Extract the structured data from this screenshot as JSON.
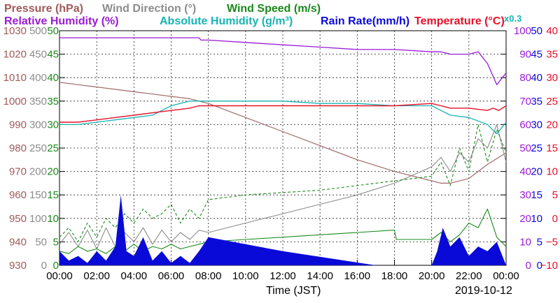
{
  "header": {
    "row1": [
      {
        "text": "Pressure (hPa)",
        "color": "#a05a5a"
      },
      {
        "text": "Wind Direction (°)",
        "color": "#8c8c8c"
      },
      {
        "text": "Wind Speed (m/s)",
        "color": "#1a8a1a"
      }
    ],
    "row2": [
      {
        "text": "Relative Humidity (%)",
        "color": "#9a1ad8"
      },
      {
        "text": "Absolute Humidity (g/m³)",
        "color": "#18b4b4"
      },
      {
        "text": "Rain Rate(mm/h)",
        "color": "#0a0ad8"
      },
      {
        "text": "Temperature (°C)",
        "color": "#e8102a"
      }
    ],
    "multiplier": "x0.3"
  },
  "footer": {
    "xlabel": "Time (JST)",
    "date": "2019-10-12"
  },
  "colors": {
    "pressure": "#a06a6a",
    "wind_direction": "#8c8c8c",
    "wind_speed": "#1a8a1a",
    "relative_humidity": "#9a1ad8",
    "absolute_humidity": "#18b4b4",
    "rain_rate": "#0a0ad8",
    "temperature": "#e8102a"
  },
  "chart_data": {
    "type": "line",
    "x_unit": "hours (00:00 to 24:00 JST)",
    "xlim": [
      0,
      24
    ],
    "x_ticks": [
      "00:00",
      "02:00",
      "04:00",
      "06:00",
      "08:00",
      "10:00",
      "12:00",
      "14:00",
      "16:00",
      "18:00",
      "20:00",
      "22:00",
      "00:00"
    ],
    "grid": true,
    "left_axes": [
      {
        "name": "Pressure (hPa)",
        "color": "#a05a5a",
        "range": [
          930,
          1030
        ],
        "ticks": [
          "1030",
          "1020",
          "1010",
          "1000",
          "990",
          "980",
          "970",
          "960",
          "950",
          "940",
          "930"
        ]
      },
      {
        "name": "Wind Direction (°)",
        "color": "#8c8c8c",
        "range": [
          0,
          500
        ],
        "ticks": [
          "500",
          "450",
          "400",
          "350",
          "300",
          "250",
          "200",
          "150",
          "100",
          "50",
          "0"
        ]
      },
      {
        "name": "Wind Speed (m/s)",
        "color": "#1a8a1a",
        "range": [
          0,
          50
        ],
        "ticks": [
          "50",
          "45",
          "40",
          "35",
          "30",
          "25",
          "20",
          "15",
          "10",
          "5",
          "0"
        ]
      }
    ],
    "right_axes": [
      {
        "name": "Relative Humidity (%)",
        "color": "#9a1ad8",
        "range": [
          0,
          100
        ],
        "ticks": [
          "100",
          "90",
          "80",
          "70",
          "60",
          "50",
          "40",
          "30",
          "20",
          "10",
          "0"
        ]
      },
      {
        "name": "Rain Rate (mm/h)",
        "color": "#0a0ad8",
        "range": [
          0,
          50
        ],
        "ticks": [
          "50",
          "45",
          "40",
          "35",
          "30",
          "25",
          "20",
          "15",
          "10",
          "5",
          "0"
        ]
      },
      {
        "name": "Temperature (°C)",
        "color": "#e8102a",
        "range": [
          -10,
          40
        ],
        "ticks": [
          "40",
          "35",
          "30",
          "25",
          "20",
          "15",
          "10",
          "5",
          "0",
          "−5",
          "−10"
        ]
      }
    ],
    "series": [
      {
        "name": "Pressure",
        "axis": "pressure",
        "x": [
          0,
          1,
          2,
          3,
          4,
          5,
          6,
          7,
          8,
          10,
          12,
          14,
          16,
          18,
          20,
          20.5,
          21,
          22,
          23,
          24
        ],
        "values": [
          1008,
          1007,
          1006,
          1005,
          1004,
          1003,
          1002,
          1001,
          999,
          993,
          987,
          981,
          975,
          970,
          966,
          965,
          965,
          967,
          973,
          978
        ]
      },
      {
        "name": "Wind Direction",
        "axis": "wind_direction",
        "x": [
          0,
          0.5,
          1,
          1.5,
          2,
          2.5,
          3,
          3.5,
          4,
          4.5,
          5,
          5.5,
          6,
          6.5,
          7,
          7.5,
          8,
          10,
          12,
          14,
          16,
          18,
          20,
          20.5,
          21,
          21.5,
          22,
          22.5,
          23,
          23.5,
          24
        ],
        "values": [
          45,
          70,
          40,
          75,
          35,
          80,
          40,
          70,
          50,
          80,
          45,
          75,
          50,
          70,
          55,
          75,
          70,
          90,
          110,
          130,
          150,
          175,
          210,
          230,
          200,
          240,
          220,
          270,
          250,
          300,
          220
        ]
      },
      {
        "name": "Wind Speed",
        "axis": "wind_speed",
        "x": [
          0,
          0.5,
          1,
          1.5,
          2,
          2.5,
          3,
          3.5,
          4,
          4.5,
          5,
          5.5,
          6,
          6.5,
          7,
          7.5,
          8,
          10,
          12,
          14,
          16,
          18,
          18.1,
          20,
          20.5,
          21,
          21.5,
          22,
          22.5,
          23,
          23.5,
          24
        ],
        "values": [
          3,
          2.5,
          4,
          3,
          3.5,
          2.5,
          4,
          3,
          4.5,
          3,
          4,
          3.5,
          4.5,
          3.5,
          4,
          4.5,
          5,
          5.5,
          6,
          6.5,
          7,
          7.5,
          5.5,
          5.5,
          7,
          5,
          6.5,
          9,
          8,
          12,
          6,
          4
        ]
      },
      {
        "name": "Wind Gust",
        "axis": "wind_speed",
        "x": [
          0,
          0.5,
          1,
          1.5,
          2,
          2.5,
          3,
          3.5,
          4,
          4.5,
          5,
          5.5,
          6,
          6.5,
          7,
          7.5,
          8,
          10,
          12,
          14,
          16,
          18,
          20,
          20.5,
          21,
          21.5,
          22,
          22.5,
          23,
          23.5,
          24
        ],
        "values": [
          6,
          8,
          5,
          9,
          6,
          10,
          8,
          11,
          9,
          12,
          10,
          11,
          13,
          9,
          12,
          10,
          14,
          15,
          15.5,
          16,
          17,
          18,
          19,
          22,
          17,
          25,
          20,
          30,
          22,
          29,
          24
        ]
      },
      {
        "name": "Relative Humidity",
        "axis": "relative_humidity",
        "x": [
          0,
          2,
          4,
          6,
          7.5,
          7.6,
          8,
          10,
          12,
          14,
          16,
          18,
          20,
          20.5,
          21,
          22,
          22.5,
          23,
          23.5,
          24
        ],
        "values": [
          97,
          97,
          97,
          97,
          97,
          96,
          96,
          95,
          94,
          93,
          92,
          92,
          91,
          91,
          90,
          90,
          91,
          86,
          77,
          82
        ]
      },
      {
        "name": "Absolute Humidity",
        "axis": "relative_humidity",
        "x": [
          0,
          1,
          2,
          3,
          4,
          5,
          5.5,
          6,
          7,
          8,
          10,
          12,
          14,
          16,
          18,
          20,
          20.5,
          21,
          22,
          23,
          23.5,
          24
        ],
        "values": [
          60,
          60,
          61,
          62,
          63,
          64,
          66,
          68,
          70,
          70,
          70,
          70,
          69,
          69,
          68,
          68,
          66,
          64,
          63,
          60,
          56,
          61
        ]
      },
      {
        "name": "Rain Rate",
        "axis": "rain_rate",
        "x": [
          0,
          0.5,
          1,
          1.5,
          2,
          2.5,
          3,
          3.3,
          3.6,
          4,
          4.5,
          5,
          5.5,
          6,
          6.5,
          7,
          7.5,
          8,
          10,
          12,
          14,
          16,
          17,
          18,
          20,
          20.3,
          20.6,
          21,
          21.5,
          22,
          22.5,
          23,
          23.5,
          24
        ],
        "values": [
          3,
          1,
          2,
          0.5,
          3,
          1,
          4,
          15,
          3,
          2,
          6,
          1,
          3,
          0.5,
          2,
          0.5,
          3,
          6,
          4.5,
          3,
          1.8,
          0.6,
          0,
          0,
          0,
          3,
          8,
          4,
          6,
          2,
          4,
          3,
          5,
          0
        ]
      },
      {
        "name": "Temperature",
        "axis": "temperature",
        "x": [
          0,
          1,
          2,
          3,
          4,
          5,
          6,
          7,
          7.5,
          8,
          10,
          12,
          14,
          16,
          18,
          20,
          20.5,
          21,
          22,
          23,
          23.3,
          23.6,
          24
        ],
        "values": [
          20.5,
          20.5,
          21,
          21.5,
          22,
          22.5,
          23,
          23.5,
          24,
          24,
          24,
          24,
          24,
          24,
          24,
          24.5,
          24,
          23.5,
          23.5,
          23,
          23.5,
          23,
          24
        ]
      }
    ]
  }
}
